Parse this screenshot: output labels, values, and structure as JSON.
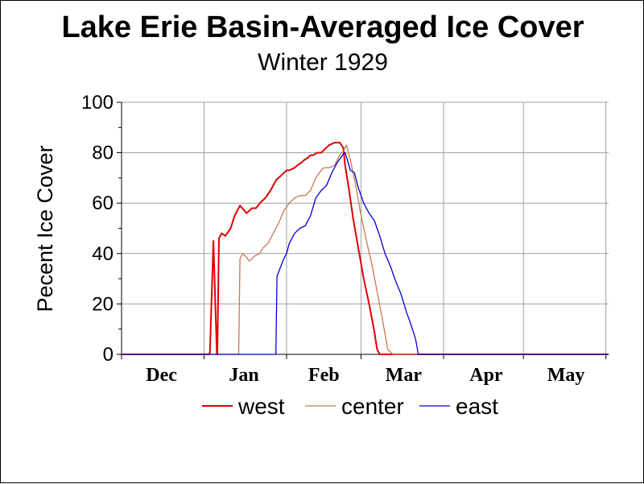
{
  "chart_data": {
    "type": "line",
    "title": "Lake Erie Basin-Averaged Ice Cover",
    "subtitle": "Winter 1929",
    "ylabel": "Pecent Ice Cover",
    "xlabel": "",
    "ylim": [
      0,
      100
    ],
    "y_ticks": [
      "0",
      "20",
      "40",
      "60",
      "80",
      "100"
    ],
    "x_range_days": [
      0,
      183
    ],
    "month_labels": [
      {
        "label": "Dec",
        "day": 15
      },
      {
        "label": "Jan",
        "day": 46
      },
      {
        "label": "Feb",
        "day": 76
      },
      {
        "label": "Mar",
        "day": 106
      },
      {
        "label": "Apr",
        "day": 137
      },
      {
        "label": "May",
        "day": 167
      }
    ],
    "month_boundaries": [
      0,
      31,
      62,
      90,
      121,
      151,
      182
    ],
    "grid": true,
    "legend_position": "bottom",
    "series": [
      {
        "name": "west",
        "color": "#e00000",
        "x": [
          0,
          33,
          33.2,
          34.5,
          35.8,
          36,
          36.6,
          37.6,
          39,
          41,
          42.5,
          44.5,
          47,
          49,
          50.5,
          52,
          54,
          56,
          57,
          58,
          60,
          62,
          63,
          65,
          66,
          67.5,
          68.5,
          70,
          71,
          72,
          73.5,
          75,
          77,
          78,
          80,
          82,
          83.3,
          84,
          85.5,
          87,
          89,
          91,
          93,
          95,
          96,
          97,
          99,
          101,
          183
        ],
        "y": [
          0,
          0,
          1,
          45,
          0,
          0,
          46,
          48,
          47,
          50,
          55,
          59,
          56,
          58,
          58,
          60,
          62,
          65,
          67,
          69,
          71,
          73,
          73,
          74,
          75,
          76,
          77,
          78,
          79,
          79,
          80,
          80,
          82,
          83,
          84,
          84,
          82,
          75,
          65,
          54,
          42,
          30,
          20,
          9,
          2,
          0,
          0,
          0,
          0
        ]
      },
      {
        "name": "center",
        "color": "#c87850",
        "x": [
          0,
          44,
          44.5,
          45.5,
          46.5,
          48,
          50,
          52,
          53,
          55,
          57,
          59,
          61,
          63,
          65,
          67,
          69,
          71,
          73,
          75,
          76,
          78,
          80,
          82,
          83.5,
          84.5,
          86,
          88,
          90,
          92,
          94,
          96,
          98,
          99,
          100,
          102,
          183
        ],
        "y": [
          0,
          0,
          38,
          40,
          39,
          37,
          39,
          40,
          42,
          44,
          48,
          52,
          57,
          60,
          62,
          63,
          63,
          65,
          70,
          73,
          74,
          74,
          75,
          79,
          81,
          83,
          77,
          67,
          55,
          45,
          36,
          25,
          14,
          8,
          2,
          0,
          0
        ]
      },
      {
        "name": "east",
        "color": "#0000d8",
        "x": [
          0,
          58,
          58.4,
          59.5,
          61,
          62,
          63,
          65,
          67,
          69,
          71,
          73,
          75,
          77,
          79,
          81,
          83,
          84,
          86,
          87.5,
          89,
          91,
          93,
          95,
          97,
          99,
          101,
          103,
          105,
          107,
          109,
          110.5,
          111.5,
          183
        ],
        "y": [
          0,
          0,
          31,
          34,
          38,
          40,
          44,
          48,
          50,
          51,
          55,
          62,
          65,
          67,
          72,
          76,
          79,
          80,
          73,
          72,
          66,
          60,
          56,
          53,
          47,
          40,
          35,
          29,
          24,
          17,
          11,
          6,
          0,
          0
        ]
      }
    ]
  }
}
